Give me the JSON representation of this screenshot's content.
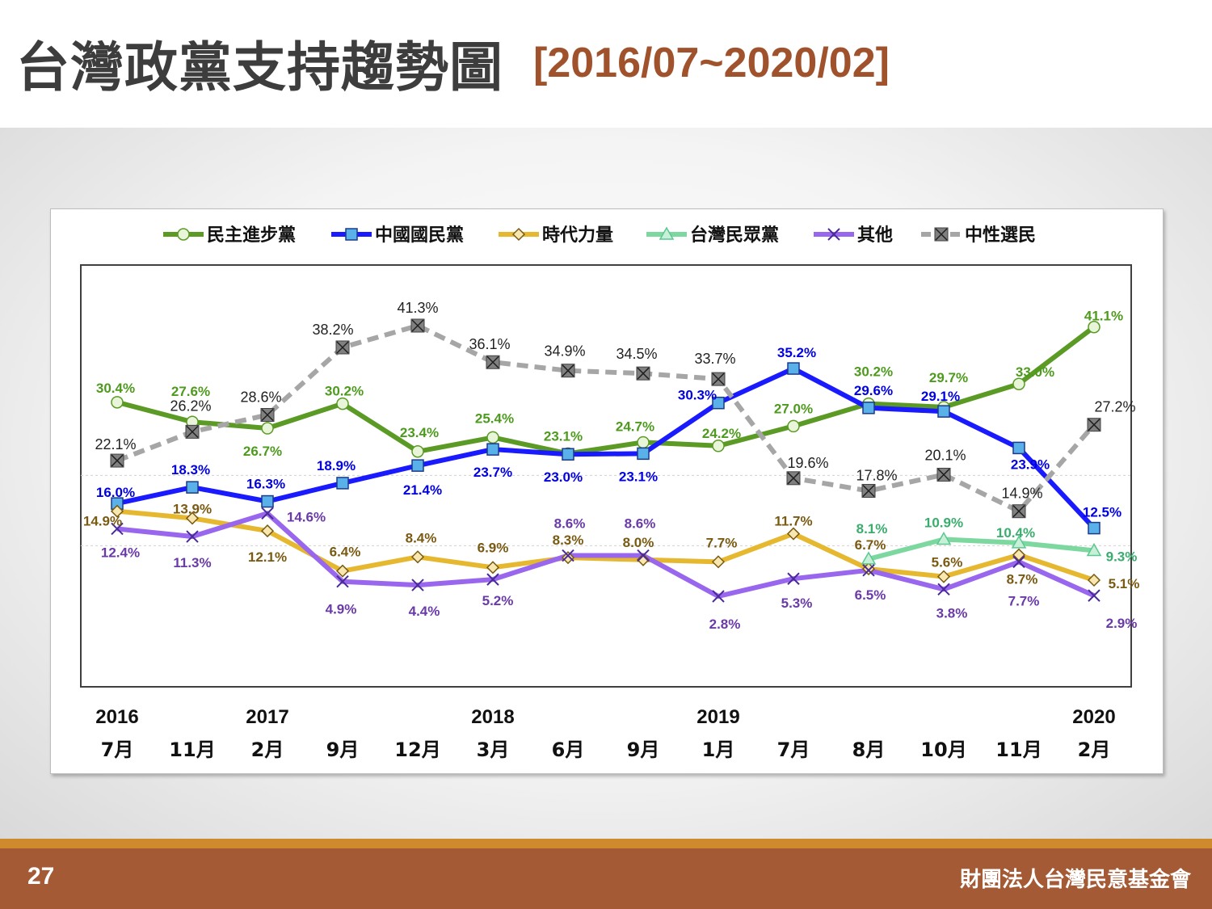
{
  "header": {
    "title": "台灣政黨支持趨勢圖",
    "subtitle": "[2016/07~2020/02]"
  },
  "footer": {
    "page_number": "27",
    "organization": "財團法人台灣民意基金會"
  },
  "chart_data": {
    "type": "line",
    "x": [
      "7月",
      "11月",
      "2月",
      "9月",
      "12月",
      "3月",
      "6月",
      "9月",
      "1月",
      "7月",
      "8月",
      "10月",
      "11月",
      "2月"
    ],
    "year_labels": [
      "2016",
      "",
      "2017",
      "",
      "",
      "2018",
      "",
      "",
      "2019",
      "",
      "",
      "",
      "",
      "2020"
    ],
    "ylim": [
      0,
      45
    ],
    "grid": "horizontal dashed",
    "legend_placement": "top",
    "series": [
      {
        "name": "民主進步黨",
        "color": "#5a9a25",
        "label_color": "#4e9a1e",
        "marker": "circle",
        "values": [
          30.4,
          27.6,
          26.7,
          30.2,
          23.4,
          25.4,
          23.1,
          24.7,
          24.2,
          27.0,
          30.2,
          29.7,
          33.0,
          41.1
        ],
        "labels": [
          "30.4%",
          "27.6%",
          "26.7%",
          "30.2%",
          "23.4%",
          "25.4%",
          "23.1%",
          "24.7%",
          "24.2%",
          "27.0%",
          "30.2%",
          "29.7%",
          "33.0%",
          "41.1%"
        ]
      },
      {
        "name": "中國國民黨",
        "color": "#1a1aff",
        "label_color": "#0000e0",
        "marker": "square",
        "values": [
          16.0,
          18.3,
          16.3,
          18.9,
          21.4,
          23.7,
          23.0,
          23.1,
          30.3,
          35.2,
          29.6,
          29.1,
          23.9,
          12.5
        ],
        "labels": [
          "16.0%",
          "18.3%",
          "16.3%",
          "18.9%",
          "21.4%",
          "23.7%",
          "23.0%",
          "23.1%",
          "30.3%",
          "35.2%",
          "29.6%",
          "29.1%",
          "23.9%",
          "12.5%"
        ]
      },
      {
        "name": "時代力量",
        "color": "#e6b830",
        "label_color": "#7a5a12",
        "marker": "diamond",
        "values": [
          14.9,
          13.9,
          12.1,
          6.4,
          8.4,
          6.9,
          8.3,
          8.0,
          7.7,
          11.7,
          6.7,
          5.6,
          8.7,
          5.1
        ],
        "labels": [
          "14.9%",
          "13.9%",
          "12.1%",
          "6.4%",
          "8.4%",
          "6.9%",
          "8.3%",
          "8.0%",
          "7.7%",
          "11.7%",
          "6.7%",
          "5.6%",
          "8.7%",
          "5.1%"
        ]
      },
      {
        "name": "台灣民眾黨",
        "color": "#7dd8a0",
        "label_color": "#3aad6e",
        "marker": "triangle",
        "values": [
          null,
          null,
          null,
          null,
          null,
          null,
          null,
          null,
          null,
          null,
          8.1,
          10.9,
          10.4,
          9.3
        ],
        "labels": [
          "",
          "",
          "",
          "",
          "",
          "",
          "",
          "",
          "",
          "",
          "8.1%",
          "10.9%",
          "10.4%",
          "9.3%"
        ]
      },
      {
        "name": "其他",
        "color": "#9966ee",
        "label_color": "#6a3aa8",
        "marker": "x",
        "values": [
          12.4,
          11.3,
          14.6,
          4.9,
          4.4,
          5.2,
          8.6,
          8.6,
          2.8,
          5.3,
          6.5,
          3.8,
          7.7,
          2.9
        ],
        "labels": [
          "12.4%",
          "11.3%",
          "14.6%",
          "4.9%",
          "4.4%",
          "5.2%",
          "8.6%",
          "8.6%",
          "2.8%",
          "5.3%",
          "6.5%",
          "3.8%",
          "7.7%",
          "2.9%"
        ]
      },
      {
        "name": "中性選民",
        "color": "#a6a6a6",
        "label_color": "#222222",
        "marker": "boxx",
        "values": [
          22.1,
          26.2,
          28.6,
          38.2,
          41.3,
          36.1,
          34.9,
          34.5,
          33.7,
          19.6,
          17.8,
          20.1,
          14.9,
          27.2
        ],
        "labels": [
          "22.1%",
          "26.2%",
          "28.6%",
          "38.2%",
          "41.3%",
          "36.1%",
          "34.9%",
          "34.5%",
          "33.7%",
          "19.6%",
          "17.8%",
          "20.1%",
          "14.9%",
          "27.2%"
        ]
      }
    ]
  }
}
